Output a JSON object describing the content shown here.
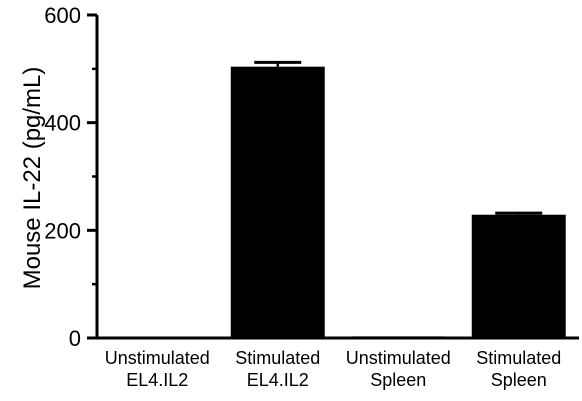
{
  "chart_data": {
    "type": "bar",
    "title": "",
    "xlabel": "",
    "ylabel": "Mouse IL-22 (pg/mL)",
    "ylim": [
      0,
      600
    ],
    "y_ticks": [
      0,
      200,
      400,
      600
    ],
    "categories": [
      [
        "Unstimulated",
        "EL4.IL2"
      ],
      [
        "Stimulated",
        "EL4.IL2"
      ],
      [
        "Unstimulated",
        "Spleen"
      ],
      [
        "Stimulated",
        "Spleen"
      ]
    ],
    "values": [
      0,
      504,
      3,
      229
    ],
    "errors": [
      0,
      8,
      0,
      3
    ],
    "grid": false,
    "legend": "none",
    "bar_color": "#000000"
  }
}
